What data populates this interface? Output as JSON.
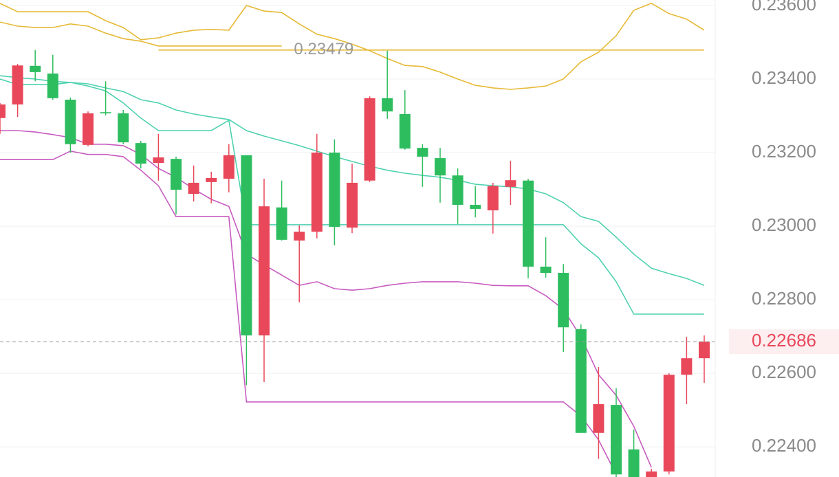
{
  "chart_data": {
    "type": "candlestick",
    "categories": [
      null,
      null,
      null,
      null,
      null,
      null,
      null,
      null,
      null,
      null,
      null,
      null,
      null,
      null,
      null,
      null,
      null,
      null,
      null,
      null,
      null,
      null,
      null,
      null,
      null,
      null,
      null,
      null,
      null,
      null,
      null,
      null,
      null,
      null,
      null,
      null,
      null,
      null,
      null,
      null,
      null
    ],
    "open": [
      0.23294,
      0.23331,
      0.23436,
      0.23415,
      0.23344,
      0.23221,
      0.2331,
      0.23307,
      0.23226,
      0.23172,
      0.23183,
      0.23088,
      0.2312,
      0.23129,
      0.23193,
      0.22703,
      0.23051,
      0.22961,
      0.22985,
      0.232,
      0.22996,
      0.23124,
      0.23348,
      0.23305,
      0.23213,
      0.23185,
      0.23138,
      0.23058,
      0.23043,
      0.23107,
      0.23124,
      0.2289,
      0.22873,
      0.2272,
      0.22438,
      0.22514,
      0.22393,
      0.223,
      0.22333,
      0.22596,
      0.22641
    ],
    "high": [
      0.23335,
      0.23441,
      0.23479,
      0.23466,
      0.2335,
      0.23312,
      0.23394,
      0.23316,
      0.23232,
      0.23251,
      0.23189,
      0.23165,
      0.23148,
      0.23223,
      0.23193,
      0.23129,
      0.23124,
      0.23002,
      0.23251,
      0.23236,
      0.2317,
      0.23353,
      0.23477,
      0.2337,
      0.23223,
      0.23213,
      0.23157,
      0.23109,
      0.23118,
      0.23178,
      0.23129,
      0.2297,
      0.22897,
      0.22733,
      0.22617,
      0.22559,
      0.22447,
      0.2234,
      0.226,
      0.22699,
      0.22703
    ],
    "low": [
      0.23251,
      0.23297,
      0.23394,
      0.23344,
      0.232,
      0.23217,
      0.23301,
      0.23223,
      0.23157,
      0.23124,
      0.23032,
      0.23067,
      0.23062,
      0.23092,
      0.22568,
      0.22576,
      0.22961,
      0.22793,
      0.22967,
      0.22948,
      0.22981,
      0.2312,
      0.23292,
      0.23208,
      0.23107,
      0.23064,
      0.23006,
      0.23024,
      0.2298,
      0.23058,
      0.22858,
      0.2286,
      0.22658,
      0.22438,
      0.22367,
      0.223,
      0.2229,
      0.2229,
      0.22325,
      0.22516,
      0.22574
    ],
    "close": [
      0.23331,
      0.23437,
      0.23419,
      0.23348,
      0.23223,
      0.23307,
      0.23307,
      0.23228,
      0.2317,
      0.23187,
      0.23099,
      0.23118,
      0.23131,
      0.23193,
      0.22703,
      0.23054,
      0.22963,
      0.22985,
      0.232,
      0.22998,
      0.23118,
      0.23348,
      0.23312,
      0.23211,
      0.23189,
      0.23138,
      0.23058,
      0.23047,
      0.23109,
      0.23125,
      0.2289,
      0.22873,
      0.22725,
      0.22438,
      0.22516,
      0.22325,
      0.223,
      0.22333,
      0.22596,
      0.22641,
      0.22686
    ],
    "up_color": "#e8485a",
    "down_color": "#2dbd5f",
    "overlays": [
      {
        "color": "#e6b935",
        "values": [
          0.23606,
          0.23583,
          0.23583,
          0.23583,
          0.23583,
          0.23583,
          0.23559,
          0.2354,
          0.23507,
          0.23512,
          0.23525,
          0.23533,
          0.23535,
          0.23533,
          0.236,
          0.23585,
          0.23581,
          0.2355,
          0.23522,
          0.2351,
          0.23495,
          0.23477,
          0.23456,
          0.23437,
          0.23434,
          0.23419,
          0.234,
          0.23383,
          0.23376,
          0.23372,
          0.23376,
          0.23381,
          0.234,
          0.23447,
          0.23473,
          0.23518,
          0.23587,
          0.23606,
          0.23578,
          0.23563,
          0.23533
        ]
      },
      {
        "color": "#e6b935",
        "values": [
          0.23555,
          0.23544,
          0.2354,
          0.2354,
          0.2355,
          0.23544,
          0.23525,
          0.2351,
          0.23503,
          0.2349,
          0.2349,
          0.2349,
          0.2349,
          0.2349,
          0.2349,
          0.2349,
          0.2349,
          null,
          null,
          null,
          null,
          null,
          null,
          null,
          null,
          null,
          null,
          null,
          null,
          null,
          null,
          null,
          null,
          null,
          null,
          null,
          null,
          null,
          null,
          null,
          null
        ]
      },
      {
        "color": "#4fd1b0",
        "values": [
          0.23409,
          0.23404,
          0.234,
          0.23394,
          0.23391,
          0.23387,
          0.23376,
          0.23366,
          0.23344,
          0.23335,
          0.23316,
          0.23305,
          0.23297,
          0.2329,
          0.2326,
          0.23245,
          0.23232,
          0.23219,
          0.23204,
          0.23189,
          0.23176,
          0.23163,
          0.23152,
          0.23144,
          0.23138,
          0.23133,
          0.23125,
          0.23114,
          0.2311,
          0.23107,
          0.23101,
          0.23088,
          0.23064,
          0.23026,
          0.23013,
          0.2297,
          0.22924,
          0.22886,
          0.22871,
          0.22858,
          0.22839
        ]
      },
      {
        "color": "#4fd1b0",
        "values": [
          0.234,
          0.23385,
          0.23385,
          0.23385,
          0.23391,
          0.23381,
          0.23368,
          0.23335,
          0.23294,
          0.2326,
          0.2326,
          0.2326,
          0.2326,
          0.23288,
          0.23004,
          0.23004,
          0.23004,
          0.23004,
          0.23004,
          0.23004,
          0.23004,
          0.23004,
          0.23004,
          0.23004,
          0.23004,
          0.23004,
          0.23004,
          0.23004,
          0.23004,
          0.23004,
          0.23004,
          0.23004,
          0.23004,
          0.22952,
          0.22914,
          0.22849,
          0.22761,
          0.22761,
          0.22761,
          0.22761,
          0.22761
        ]
      },
      {
        "color": "#c75bc0",
        "values": [
          0.2326,
          0.2326,
          0.23256,
          0.23249,
          0.23241,
          0.23223,
          0.23223,
          0.23219,
          0.23195,
          0.23157,
          0.23133,
          0.23101,
          0.23073,
          0.23054,
          0.22924,
          0.22895,
          0.22867,
          0.22839,
          0.22849,
          0.2283,
          0.22826,
          0.2283,
          0.22839,
          0.22845,
          0.22849,
          0.22849,
          0.22849,
          0.22845,
          0.22839,
          0.22838,
          0.22838,
          0.22811,
          0.22774,
          0.22699,
          0.22596,
          0.2254,
          0.22456,
          0.22344,
          null,
          null,
          null
        ]
      },
      {
        "color": "#c75bc0",
        "values": [
          0.23181,
          0.23181,
          0.23181,
          0.23181,
          0.23204,
          0.23195,
          0.23195,
          0.23189,
          0.23152,
          0.2311,
          0.23026,
          0.23026,
          0.23026,
          0.23026,
          0.22522,
          0.22522,
          0.22522,
          0.22522,
          0.22522,
          0.22522,
          0.22522,
          0.22522,
          0.22522,
          0.22522,
          0.22522,
          0.22522,
          0.22522,
          0.22522,
          0.22522,
          0.22522,
          0.22522,
          0.22522,
          0.22522,
          0.22484,
          0.22419,
          0.22325,
          null,
          null,
          null,
          null,
          null
        ]
      }
    ],
    "max_line": {
      "value": 0.23479,
      "label": "0.23479",
      "color": "#e6b935"
    },
    "last_price": {
      "value": 0.22686,
      "label": "0.22686"
    },
    "ylim": [
      0.22318,
      0.23615
    ],
    "yticks": [
      {
        "value": 0.236,
        "label": "0.23600"
      },
      {
        "value": 0.234,
        "label": "0.23400"
      },
      {
        "value": 0.232,
        "label": "0.23200"
      },
      {
        "value": 0.23,
        "label": "0.23000"
      },
      {
        "value": 0.228,
        "label": "0.22800"
      },
      {
        "value": 0.226,
        "label": "0.22600"
      },
      {
        "value": 0.224,
        "label": "0.22400"
      }
    ],
    "grid": true
  }
}
